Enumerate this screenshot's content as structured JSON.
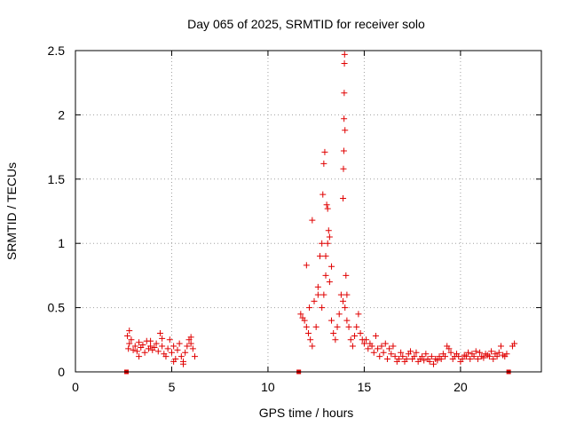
{
  "chart_data": {
    "type": "scatter",
    "title": "Day 065 of 2025, SRMTID for receiver solo",
    "xlabel": "GPS time / hours",
    "ylabel": "SRMTID / TECUs",
    "xlim": [
      0,
      24.2
    ],
    "ylim": [
      0,
      2.5
    ],
    "xticks": [
      0,
      5,
      10,
      15,
      20
    ],
    "xtick_labels": [
      "0",
      "5",
      "10",
      "15",
      "20"
    ],
    "yticks": [
      0,
      0.5,
      1,
      1.5,
      2,
      2.5
    ],
    "ytick_labels": [
      "0",
      "0.5",
      "1",
      "1.5",
      "2",
      "2.5"
    ],
    "grid": true,
    "marker": "+",
    "color": "#e00000",
    "series": [
      {
        "name": "SRMTID",
        "x": [
          2.7,
          2.75,
          2.8,
          2.9,
          3.0,
          3.1,
          3.2,
          3.3,
          3.4,
          3.5,
          3.6,
          3.7,
          3.8,
          3.9,
          4.0,
          4.1,
          4.2,
          4.3,
          4.4,
          4.5,
          4.6,
          4.7,
          4.8,
          4.9,
          5.0,
          5.1,
          5.2,
          5.3,
          5.4,
          5.5,
          5.6,
          5.7,
          5.8,
          5.9,
          6.0,
          6.1,
          6.2,
          2.8,
          3.3,
          3.9,
          4.5,
          5.1,
          5.6,
          6.0,
          11.7,
          11.8,
          11.9,
          12.0,
          12.1,
          12.15,
          12.2,
          12.3,
          12.4,
          12.5,
          12.6,
          12.7,
          12.8,
          12.9,
          13.0,
          13.1,
          13.2,
          13.3,
          13.4,
          13.5,
          13.6,
          13.7,
          13.8,
          13.9,
          14.0,
          14.1,
          14.2,
          14.3,
          14.4,
          14.5,
          14.6,
          14.7,
          14.8,
          14.9,
          15.0,
          12.0,
          12.3,
          12.6,
          12.8,
          12.85,
          12.9,
          12.95,
          13.0,
          13.05,
          13.1,
          13.15,
          13.2,
          13.3,
          13.9,
          13.92,
          13.94,
          13.95,
          13.96,
          13.97,
          13.98,
          14.0,
          14.05,
          14.1,
          15.1,
          15.2,
          15.3,
          15.4,
          15.5,
          15.6,
          15.7,
          15.8,
          15.9,
          16.0,
          16.1,
          16.2,
          16.3,
          16.4,
          16.5,
          16.6,
          16.7,
          16.8,
          16.9,
          17.0,
          17.1,
          17.2,
          17.3,
          17.4,
          17.5,
          17.6,
          17.7,
          17.8,
          17.9,
          18.0,
          18.1,
          18.2,
          18.3,
          18.4,
          18.5,
          18.6,
          18.7,
          18.8,
          18.9,
          19.0,
          19.1,
          19.2,
          19.3,
          19.4,
          19.5,
          19.6,
          19.7,
          19.8,
          19.9,
          20.0,
          20.1,
          20.2,
          20.3,
          20.4,
          20.5,
          20.6,
          20.7,
          20.8,
          20.9,
          21.0,
          21.1,
          21.2,
          21.3,
          21.4,
          21.5,
          21.6,
          21.7,
          21.8,
          21.9,
          22.0,
          22.1,
          22.2,
          22.3,
          22.4,
          22.7,
          22.8
        ],
        "y": [
          0.28,
          0.18,
          0.22,
          0.25,
          0.17,
          0.2,
          0.16,
          0.23,
          0.19,
          0.21,
          0.15,
          0.24,
          0.18,
          0.2,
          0.17,
          0.19,
          0.22,
          0.16,
          0.3,
          0.2,
          0.14,
          0.12,
          0.18,
          0.25,
          0.15,
          0.2,
          0.1,
          0.17,
          0.22,
          0.12,
          0.08,
          0.15,
          0.2,
          0.25,
          0.22,
          0.18,
          0.12,
          0.32,
          0.12,
          0.24,
          0.26,
          0.08,
          0.06,
          0.27,
          0.45,
          0.42,
          0.4,
          0.35,
          0.3,
          0.5,
          0.25,
          0.2,
          0.55,
          0.35,
          0.6,
          0.9,
          0.5,
          0.6,
          0.75,
          1.0,
          0.7,
          0.4,
          0.3,
          0.25,
          0.35,
          0.45,
          0.6,
          0.55,
          0.5,
          0.4,
          0.35,
          0.25,
          0.2,
          0.28,
          0.35,
          0.45,
          0.3,
          0.25,
          0.22,
          0.83,
          1.18,
          0.66,
          1.0,
          1.38,
          1.62,
          1.71,
          0.9,
          1.3,
          1.27,
          1.1,
          1.05,
          0.82,
          1.35,
          1.58,
          1.72,
          1.97,
          2.17,
          2.4,
          2.47,
          1.88,
          0.75,
          0.6,
          0.25,
          0.18,
          0.22,
          0.2,
          0.15,
          0.28,
          0.18,
          0.12,
          0.2,
          0.15,
          0.22,
          0.1,
          0.18,
          0.14,
          0.2,
          0.12,
          0.08,
          0.1,
          0.15,
          0.12,
          0.08,
          0.1,
          0.14,
          0.16,
          0.1,
          0.12,
          0.15,
          0.08,
          0.1,
          0.12,
          0.09,
          0.14,
          0.1,
          0.08,
          0.12,
          0.06,
          0.1,
          0.09,
          0.12,
          0.1,
          0.14,
          0.12,
          0.2,
          0.18,
          0.15,
          0.1,
          0.12,
          0.14,
          0.12,
          0.08,
          0.1,
          0.13,
          0.12,
          0.15,
          0.1,
          0.14,
          0.12,
          0.16,
          0.1,
          0.15,
          0.12,
          0.11,
          0.14,
          0.13,
          0.12,
          0.16,
          0.1,
          0.14,
          0.12,
          0.15,
          0.2,
          0.13,
          0.12,
          0.14,
          0.2,
          0.22
        ]
      }
    ],
    "baseline_markers_x": [
      2.65,
      11.6,
      22.5
    ]
  }
}
